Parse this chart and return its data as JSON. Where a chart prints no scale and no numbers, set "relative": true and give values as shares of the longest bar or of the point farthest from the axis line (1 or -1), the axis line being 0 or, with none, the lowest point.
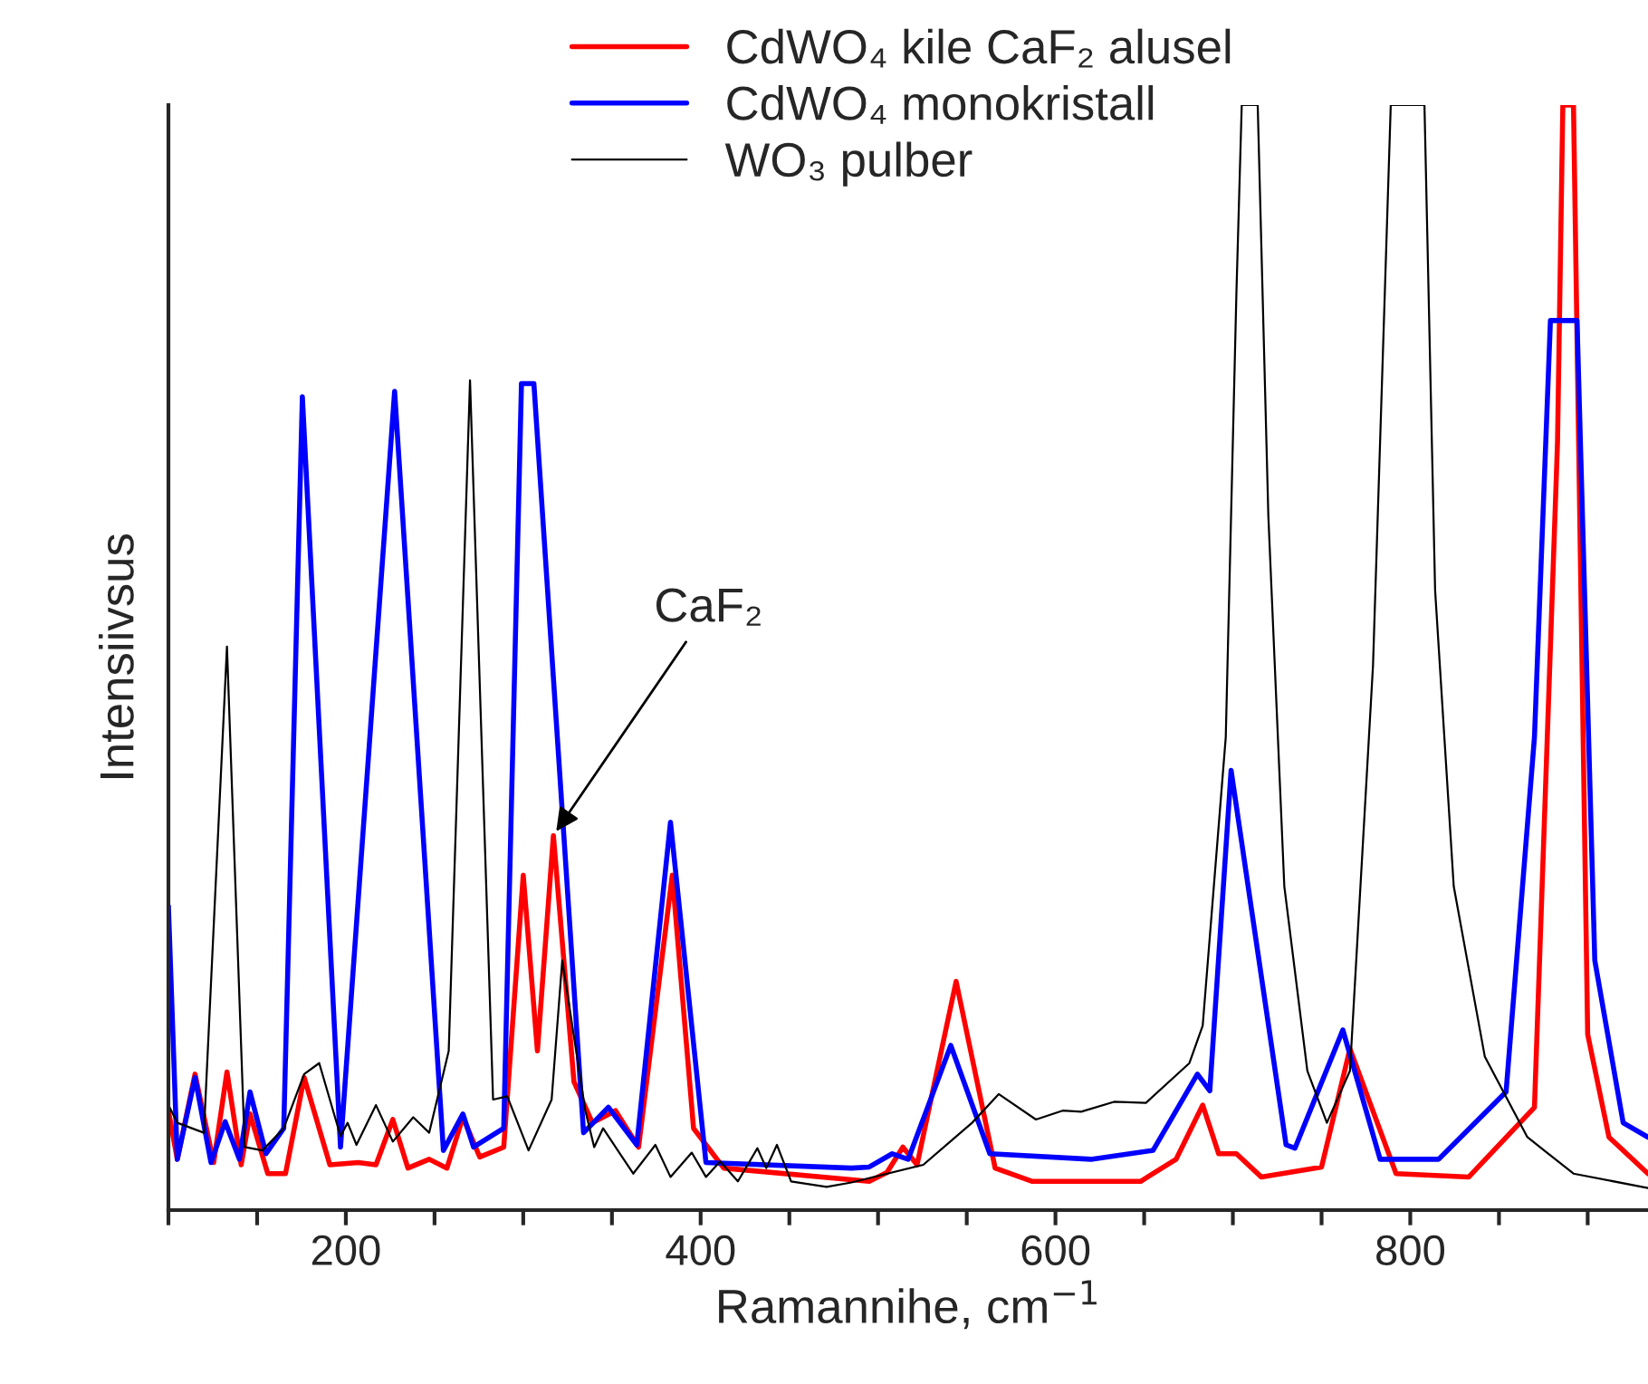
{
  "chart_data": {
    "type": "line",
    "relative": true,
    "xlabel": "Ramannihe, cm$^{−1}$",
    "ylabel": "Intensiivsus",
    "xlim": [
      100,
      934
    ],
    "xticks": [
      {
        "value": 100,
        "label": null
      },
      {
        "value": 150,
        "label": null
      },
      200,
      {
        "value": 250,
        "label": null
      },
      {
        "value": 300,
        "label": null
      },
      {
        "value": 350,
        "label": null
      },
      400,
      {
        "value": 450,
        "label": null
      },
      {
        "value": 500,
        "label": null
      },
      {
        "value": 550,
        "label": null
      },
      600,
      {
        "value": 650,
        "label": null
      },
      {
        "value": 700,
        "label": null
      },
      {
        "value": 750,
        "label": null
      },
      800,
      {
        "value": 850,
        "label": null
      },
      {
        "value": 900,
        "label": null
      }
    ],
    "legend": "top",
    "grid": false,
    "marker": "none",
    "line_style": "solid",
    "tick_labels": "x",
    "annotations": [
      {
        "text": "CaF₂",
        "x": 317,
        "y": 0.339
      }
    ],
    "series": [
      {
        "name": "CdWO₄ kile CaF₂ alusel",
        "color": "#ff0000",
        "x": [
          100,
          105,
          115,
          125.5,
          133,
          141,
          146,
          156,
          166,
          176.5,
          191,
          207,
          217,
          226.5,
          235,
          247,
          257,
          266,
          275.5,
          289,
          300,
          308,
          317,
          328.6,
          339,
          352,
          365,
          384,
          396,
          413,
          495,
          505,
          514,
          522,
          544,
          566,
          587,
          648,
          668,
          683,
          692,
          702,
          716,
          750,
          766,
          792,
          833,
          870,
          883,
          886,
          892,
          900,
          912,
          934
        ],
        "values": [
          0.09,
          0.046,
          0.123,
          0.043,
          0.125,
          0.041,
          0.087,
          0.033,
          0.033,
          0.12,
          0.041,
          0.043,
          0.041,
          0.082,
          0.038,
          0.046,
          0.038,
          0.084,
          0.048,
          0.057,
          0.303,
          0.144,
          0.339,
          0.116,
          0.079,
          0.09,
          0.057,
          0.303,
          0.074,
          0.038,
          0.026,
          0.034,
          0.057,
          0.041,
          0.207,
          0.038,
          0.026,
          0.026,
          0.046,
          0.095,
          0.051,
          0.051,
          0.03,
          0.039,
          0.146,
          0.033,
          0.03,
          0.093,
          0.695,
          1.0,
          1.0,
          0.159,
          0.066,
          0.033
        ]
      },
      {
        "name": "CdWO₄ monokristall",
        "color": "#0000ff",
        "x": [
          100,
          105,
          115,
          124,
          132,
          140,
          146,
          155,
          165,
          175.5,
          197,
          227.5,
          255,
          266,
          272,
          289,
          299,
          306,
          334,
          348,
          364,
          383,
          403,
          485,
          495,
          508,
          517,
          541,
          563,
          620,
          655,
          680,
          687,
          699,
          730,
          735,
          762,
          783,
          816,
          854,
          870,
          879,
          894,
          904,
          920,
          934
        ],
        "values": [
          0.275,
          0.046,
          0.12,
          0.043,
          0.08,
          0.046,
          0.107,
          0.051,
          0.074,
          0.736,
          0.057,
          0.741,
          0.054,
          0.087,
          0.057,
          0.074,
          0.748,
          0.748,
          0.07,
          0.093,
          0.059,
          0.351,
          0.043,
          0.038,
          0.039,
          0.051,
          0.046,
          0.149,
          0.051,
          0.046,
          0.054,
          0.123,
          0.108,
          0.398,
          0.059,
          0.056,
          0.163,
          0.046,
          0.046,
          0.107,
          0.428,
          0.805,
          0.805,
          0.226,
          0.079,
          0.066
        ]
      },
      {
        "name": "WO₃ pulber",
        "color": "#000000",
        "x": [
          100,
          105,
          120,
          133,
          143,
          153,
          165,
          176.5,
          185,
          197,
          201,
          206,
          217,
          226.5,
          238,
          247,
          258,
          270,
          283,
          291,
          303,
          316,
          322,
          335,
          340,
          345,
          362,
          374.5,
          383,
          395,
          403,
          411,
          421,
          432,
          437,
          443,
          451,
          471,
          485,
          525.5,
          553,
          568,
          589,
          604,
          614.5,
          633,
          651,
          675.5,
          683,
          696,
          702,
          705,
          714,
          720,
          729,
          742,
          753,
          766,
          779,
          789,
          808,
          814,
          824.5,
          842,
          866,
          892,
          934
        ],
        "values": [
          0.095,
          0.079,
          0.07,
          0.51,
          0.057,
          0.054,
          0.074,
          0.123,
          0.133,
          0.067,
          0.079,
          0.059,
          0.095,
          0.062,
          0.084,
          0.07,
          0.144,
          0.751,
          0.1,
          0.103,
          0.054,
          0.1,
          0.226,
          0.09,
          0.057,
          0.074,
          0.033,
          0.059,
          0.03,
          0.052,
          0.03,
          0.044,
          0.026,
          0.056,
          0.038,
          0.059,
          0.026,
          0.021,
          0.025,
          0.041,
          0.079,
          0.105,
          0.082,
          0.09,
          0.089,
          0.098,
          0.097,
          0.133,
          0.167,
          0.428,
          0.83,
          1.0,
          1.0,
          0.628,
          0.293,
          0.126,
          0.079,
          0.126,
          0.493,
          1.0,
          1.0,
          0.561,
          0.293,
          0.139,
          0.066,
          0.033,
          0.02
        ]
      }
    ]
  }
}
